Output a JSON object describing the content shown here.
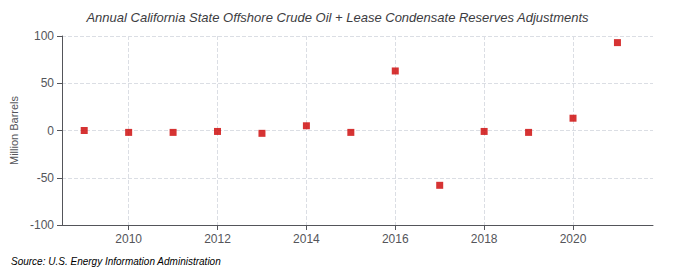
{
  "chart_data": {
    "type": "scatter",
    "title": "Annual California State Offshore Crude Oil + Lease Condensate Reserves Adjustments",
    "ylabel": "Million Barrels",
    "annotation": "Source: U.S. Energy Information Administration",
    "x": [
      2009,
      2010,
      2011,
      2012,
      2013,
      2014,
      2015,
      2016,
      2017,
      2018,
      2019,
      2020,
      2021
    ],
    "values": [
      0.0,
      -2.0,
      -2.0,
      -1.0,
      -3.0,
      5.0,
      -2.0,
      63.0,
      -58.0,
      -1.0,
      -2.0,
      13.0,
      93.0
    ],
    "color": "#cc0000",
    "marker": "square",
    "xlim": [
      2008.5,
      2021.8
    ],
    "xticks": [
      2010,
      2012,
      2014,
      2016,
      2018,
      2020
    ],
    "ylim": [
      -100,
      100
    ],
    "yticks": [
      -100,
      -50,
      0,
      50,
      100
    ],
    "grid": true
  }
}
